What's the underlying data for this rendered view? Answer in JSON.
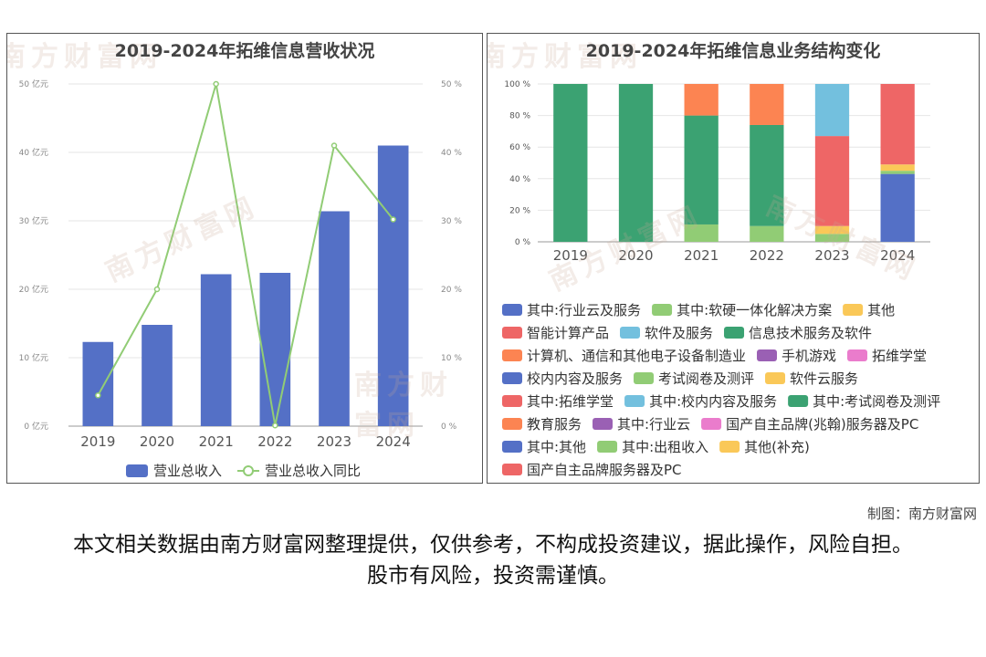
{
  "left_panel": {
    "title": "2019-2024年拓维信息营收状况",
    "legend": {
      "bar": "营业总收入",
      "line": "营业总收入同比"
    }
  },
  "right_panel": {
    "title": "2019-2024年拓维信息业务结构变化"
  },
  "watermark": "南方财富网",
  "credit": "制图：南方财富网",
  "disclaimer": "本文相关数据由南方财富网整理提供，仅供参考，不构成投资建议，据此操作，风险自担。股市有风险，投资需谨慎。",
  "colors": {
    "bar": "#5470c6",
    "line": "#91cc75"
  },
  "chart_data": [
    {
      "type": "bar",
      "title": "2019-2024年拓维信息营收状况",
      "categories": [
        "2019",
        "2020",
        "2021",
        "2022",
        "2023",
        "2024"
      ],
      "series": [
        {
          "name": "营业总收入",
          "type": "bar",
          "axis": "left",
          "values": [
            12.3,
            14.8,
            22.2,
            22.4,
            31.4,
            41.0
          ]
        },
        {
          "name": "营业总收入同比",
          "type": "line",
          "axis": "right",
          "values": [
            4.5,
            20.0,
            50.0,
            0.1,
            41.0,
            30.2
          ]
        }
      ],
      "y_left": {
        "ticks": [
          "0 亿元",
          "10 亿元",
          "20 亿元",
          "30 亿元",
          "40 亿元",
          "50 亿元"
        ],
        "range": [
          0,
          50
        ]
      },
      "y_right": {
        "ticks": [
          "0 %",
          "10 %",
          "20 %",
          "30 %",
          "40 %",
          "50 %"
        ],
        "range": [
          0,
          50
        ]
      },
      "legend": "bottom"
    },
    {
      "type": "bar",
      "stacked": true,
      "title": "2019-2024年拓维信息业务结构变化",
      "categories": [
        "2019",
        "2020",
        "2021",
        "2022",
        "2023",
        "2024"
      ],
      "y_ticks": [
        "0 %",
        "20 %",
        "40 %",
        "60 %",
        "80 %",
        "100 %"
      ],
      "ylim": [
        0,
        100
      ],
      "series": [
        {
          "name": "其中:行业云及服务",
          "color": "#5470c6",
          "values": [
            0,
            0,
            0,
            0,
            0,
            43
          ]
        },
        {
          "name": "其中:软硬一体化解决方案",
          "color": "#91cc75",
          "values": [
            0,
            0,
            11,
            10,
            5,
            2
          ]
        },
        {
          "name": "其他",
          "color": "#fac858",
          "values": [
            0,
            0,
            0,
            0,
            5,
            4
          ]
        },
        {
          "name": "智能计算产品",
          "color": "#ee6666",
          "values": [
            0,
            0,
            0,
            0,
            57,
            51
          ]
        },
        {
          "name": "软件及服务",
          "color": "#73c0de",
          "values": [
            0,
            0,
            0,
            0,
            33,
            0
          ]
        },
        {
          "name": "信息技术服务及软件",
          "color": "#3ba272",
          "values": [
            100,
            100,
            69,
            64,
            0,
            0
          ]
        },
        {
          "name": "计算机、通信和其他电子设备制造业",
          "color": "#fc8452",
          "values": [
            0,
            0,
            20,
            26,
            0,
            0
          ]
        },
        {
          "name": "手机游戏",
          "color": "#9a60b4",
          "values": [
            0,
            0,
            0,
            0,
            0,
            0
          ]
        },
        {
          "name": "拓维学堂",
          "color": "#ea7ccc",
          "values": [
            0,
            0,
            0,
            0,
            0,
            0
          ]
        },
        {
          "name": "校内内容及服务",
          "color": "#5470c6",
          "values": [
            0,
            0,
            0,
            0,
            0,
            0
          ]
        },
        {
          "name": "考试阅卷及测评",
          "color": "#91cc75",
          "values": [
            0,
            0,
            0,
            0,
            0,
            0
          ]
        },
        {
          "name": "软件云服务",
          "color": "#fac858",
          "values": [
            0,
            0,
            0,
            0,
            0,
            0
          ]
        },
        {
          "name": "其中:拓维学堂",
          "color": "#ee6666",
          "values": [
            0,
            0,
            0,
            0,
            0,
            0
          ]
        },
        {
          "name": "其中:校内内容及服务",
          "color": "#73c0de",
          "values": [
            0,
            0,
            0,
            0,
            0,
            0
          ]
        },
        {
          "name": "其中:考试阅卷及测评",
          "color": "#3ba272",
          "values": [
            0,
            0,
            0,
            0,
            0,
            0
          ]
        },
        {
          "name": "教育服务",
          "color": "#fc8452",
          "values": [
            0,
            0,
            0,
            0,
            0,
            0
          ]
        },
        {
          "name": "其中:行业云",
          "color": "#9a60b4",
          "values": [
            0,
            0,
            0,
            0,
            0,
            0
          ]
        },
        {
          "name": "国产自主品牌(兆翰)服务器及PC",
          "color": "#ea7ccc",
          "values": [
            0,
            0,
            0,
            0,
            0,
            0
          ]
        },
        {
          "name": "其中:其他",
          "color": "#5470c6",
          "values": [
            0,
            0,
            0,
            0,
            0,
            0
          ]
        },
        {
          "name": "其中:出租收入",
          "color": "#91cc75",
          "values": [
            0,
            0,
            0,
            0,
            0,
            0
          ]
        },
        {
          "name": "其他(补充)",
          "color": "#fac858",
          "values": [
            0,
            0,
            0,
            0,
            0,
            0
          ]
        },
        {
          "name": "国产自主品牌服务器及PC",
          "color": "#ee6666",
          "values": [
            0,
            0,
            0,
            0,
            0,
            0
          ]
        }
      ],
      "legend": "bottom"
    }
  ]
}
